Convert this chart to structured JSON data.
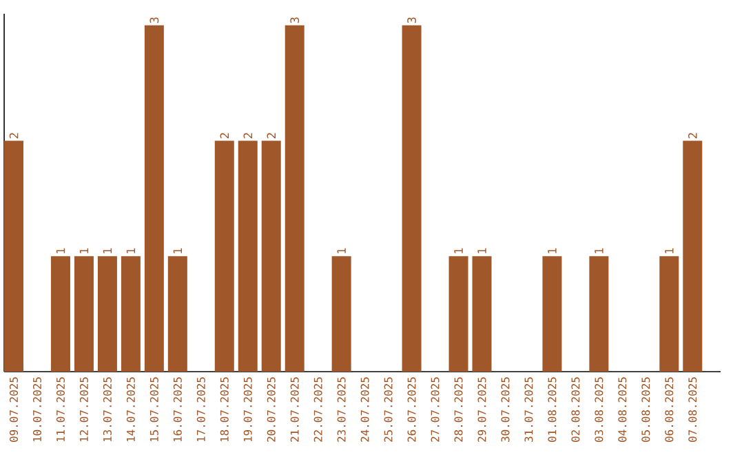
{
  "chart_data": {
    "type": "bar",
    "categories": [
      "09.07.2025",
      "10.07.2025",
      "11.07.2025",
      "12.07.2025",
      "13.07.2025",
      "14.07.2025",
      "15.07.2025",
      "16.07.2025",
      "17.07.2025",
      "18.07.2025",
      "19.07.2025",
      "20.07.2025",
      "21.07.2025",
      "22.07.2025",
      "23.07.2025",
      "24.07.2025",
      "25.07.2025",
      "26.07.2025",
      "27.07.2025",
      "28.07.2025",
      "29.07.2025",
      "30.07.2025",
      "31.07.2025",
      "01.08.2025",
      "02.08.2025",
      "03.08.2025",
      "04.08.2025",
      "05.08.2025",
      "06.08.2025",
      "07.08.2025"
    ],
    "values": [
      2,
      0,
      1,
      1,
      1,
      1,
      3,
      1,
      0,
      2,
      2,
      2,
      3,
      0,
      1,
      0,
      0,
      3,
      0,
      1,
      1,
      0,
      0,
      1,
      0,
      1,
      0,
      0,
      1,
      2
    ],
    "value_labels": [
      "2",
      null,
      "1",
      "1",
      "1",
      "1",
      "3",
      "1",
      null,
      "2",
      "2",
      "2",
      "3",
      null,
      "1",
      null,
      null,
      "3",
      null,
      "1",
      "1",
      null,
      null,
      "1",
      null,
      "1",
      null,
      null,
      "1",
      "2"
    ],
    "color": "#a0572a",
    "ylim": [
      0,
      3.1
    ],
    "tick_labels": "x",
    "grid": false
  }
}
